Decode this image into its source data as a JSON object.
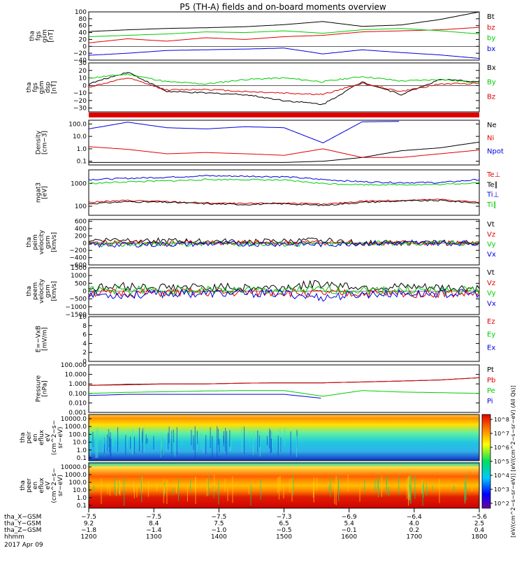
{
  "title": "P5 (TH-A) fields and on-board moments overview",
  "colors": {
    "black": "#000000",
    "red": "#e00000",
    "green": "#00cc00",
    "blue": "#0000dd"
  },
  "chart_data": [
    {
      "type": "line",
      "id": "fgs_btotal",
      "ylabel": [
        "tha",
        "fgs",
        "gsm",
        "[nT]"
      ],
      "ylim": [
        -40,
        100
      ],
      "ticks": [
        "100",
        "80",
        "60",
        "40",
        "20",
        "0",
        "−20",
        "−40"
      ],
      "tickvals": [
        100,
        80,
        60,
        40,
        20,
        0,
        -20,
        -40
      ],
      "x": [
        0,
        10,
        20,
        30,
        40,
        50,
        60,
        70,
        80,
        90,
        100
      ],
      "series": [
        {
          "name": "Bt",
          "color": "black",
          "values": [
            43,
            48,
            52,
            54,
            57,
            63,
            72,
            58,
            62,
            78,
            100
          ]
        },
        {
          "name": "bz",
          "color": "red",
          "values": [
            10,
            22,
            15,
            25,
            20,
            28,
            32,
            42,
            45,
            48,
            55
          ]
        },
        {
          "name": "by",
          "color": "green",
          "values": [
            28,
            32,
            36,
            42,
            40,
            45,
            38,
            48,
            52,
            45,
            36
          ]
        },
        {
          "name": "bx",
          "color": "blue",
          "values": [
            -26,
            -20,
            -12,
            -10,
            -8,
            -5,
            -22,
            -10,
            -18,
            -25,
            -35
          ]
        }
      ]
    },
    {
      "type": "line",
      "id": "fgs_comp",
      "ylabel": [
        "tha",
        "fgs",
        "gsm",
        "dsp",
        "[nT]"
      ],
      "ylim": [
        -35,
        30
      ],
      "ticks": [
        "30",
        "20",
        "10",
        "0",
        "−10",
        "−20",
        "−30"
      ],
      "tickvals": [
        30,
        20,
        10,
        0,
        -10,
        -20,
        -30
      ],
      "x": [
        0,
        10,
        20,
        30,
        40,
        50,
        60,
        70,
        80,
        90,
        100
      ],
      "series": [
        {
          "name": "Bx",
          "color": "black",
          "values": [
            2,
            18,
            -8,
            -10,
            -12,
            -20,
            -25,
            5,
            -12,
            8,
            5
          ]
        },
        {
          "name": "By",
          "color": "green",
          "values": [
            10,
            15,
            5,
            2,
            8,
            10,
            5,
            12,
            6,
            8,
            4
          ]
        },
        {
          "name": "Bz",
          "color": "red",
          "values": [
            -2,
            10,
            -6,
            -5,
            -8,
            -10,
            -12,
            3,
            -8,
            2,
            3
          ]
        }
      ]
    },
    {
      "type": "line",
      "id": "density",
      "ylabel": [
        "Density",
        "[cm−3]"
      ],
      "log": true,
      "ylim": [
        0.05,
        200
      ],
      "ticks": [
        "100.0",
        "10.0",
        "1.0",
        "0.1"
      ],
      "tickvals": [
        100,
        10,
        1,
        0.1
      ],
      "x": [
        0,
        10,
        20,
        30,
        40,
        50,
        60,
        70,
        80,
        90,
        100
      ],
      "series": [
        {
          "name": "Ne",
          "color": "black",
          "values": [
            0.08,
            0.08,
            0.08,
            0.08,
            0.08,
            0.08,
            0.1,
            0.2,
            0.7,
            1.2,
            3.5
          ]
        },
        {
          "name": "Ni",
          "color": "red",
          "values": [
            1.5,
            0.9,
            0.4,
            0.5,
            0.4,
            0.3,
            1.0,
            0.2,
            0.2,
            0.4,
            0.8
          ]
        },
        {
          "name": "Npot",
          "color": "blue",
          "values": [
            40,
            140,
            50,
            40,
            60,
            50,
            3,
            150,
            160,
            null,
            null
          ]
        }
      ]
    },
    {
      "type": "line",
      "id": "temperature",
      "ylabel": [
        "mgat3",
        "[eV]"
      ],
      "log": true,
      "ylim": [
        40,
        4000
      ],
      "ticks": [
        "1000",
        "100"
      ],
      "tickvals": [
        1000,
        100
      ],
      "x": [
        0,
        10,
        20,
        30,
        40,
        50,
        60,
        70,
        80,
        90,
        100
      ],
      "series": [
        {
          "name": "Te⊥",
          "color": "red",
          "values": [
            150,
            180,
            160,
            140,
            130,
            140,
            120,
            170,
            180,
            200,
            150
          ]
        },
        {
          "name": "Te∥",
          "color": "black",
          "values": [
            130,
            160,
            150,
            130,
            120,
            130,
            110,
            150,
            170,
            180,
            140
          ]
        },
        {
          "name": "Ti⊥",
          "color": "blue",
          "values": [
            1500,
            1700,
            1900,
            2200,
            2100,
            2000,
            1500,
            1200,
            1100,
            1100,
            1500
          ]
        },
        {
          "name": "Ti∥",
          "color": "green",
          "values": [
            1000,
            1200,
            1300,
            1500,
            1500,
            1400,
            1000,
            900,
            900,
            900,
            1100
          ]
        }
      ]
    },
    {
      "type": "line",
      "id": "ion_velocity",
      "ylabel": [
        "tha",
        "peim",
        "velocity",
        "gsm",
        "[km/s]"
      ],
      "ylim": [
        -600,
        650
      ],
      "ticks": [
        "600",
        "400",
        "200",
        "0",
        "−200",
        "−400",
        "−600"
      ],
      "tickvals": [
        600,
        400,
        200,
        0,
        -200,
        -400,
        -600
      ],
      "x": [
        0,
        10,
        20,
        30,
        40,
        50,
        60,
        70,
        80,
        90,
        100
      ],
      "series": [
        {
          "name": "Vt",
          "color": "black",
          "values": [
            80,
            100,
            60,
            50,
            40,
            50,
            80,
            10,
            10,
            10,
            10
          ]
        },
        {
          "name": "Vz",
          "color": "red",
          "values": [
            10,
            20,
            0,
            10,
            0,
            10,
            20,
            0,
            0,
            0,
            0
          ]
        },
        {
          "name": "Vy",
          "color": "green",
          "values": [
            -40,
            -30,
            -20,
            -20,
            -10,
            -20,
            -30,
            0,
            0,
            0,
            0
          ]
        },
        {
          "name": "Vx",
          "color": "blue",
          "values": [
            -60,
            -40,
            -30,
            -20,
            -20,
            -20,
            -40,
            0,
            0,
            0,
            0
          ]
        }
      ]
    },
    {
      "type": "line",
      "id": "electron_velocity",
      "ylabel": [
        "tha",
        "peem",
        "velocity",
        "gsm",
        "[km/s]"
      ],
      "ylim": [
        -1500,
        1500
      ],
      "ticks": [
        "1500",
        "1000",
        "500",
        "0",
        "−500",
        "−1000",
        "−1500"
      ],
      "tickvals": [
        1500,
        1000,
        500,
        0,
        -500,
        -1000,
        -1500
      ],
      "x": [
        0,
        10,
        20,
        30,
        40,
        50,
        60,
        70,
        80,
        90,
        100
      ],
      "series": [
        {
          "name": "Vt",
          "color": "black",
          "values": [
            200,
            300,
            250,
            250,
            220,
            250,
            500,
            250,
            250,
            200,
            150
          ]
        },
        {
          "name": "Vz",
          "color": "red",
          "values": [
            -100,
            -150,
            -100,
            -100,
            -100,
            -100,
            -150,
            -150,
            -150,
            -150,
            -150
          ]
        },
        {
          "name": "Vy",
          "color": "green",
          "values": [
            50,
            60,
            50,
            60,
            50,
            50,
            50,
            60,
            60,
            50,
            40
          ]
        },
        {
          "name": "Vx",
          "color": "blue",
          "values": [
            -200,
            -250,
            -150,
            -150,
            -150,
            -150,
            -400,
            -200,
            -150,
            -150,
            -150
          ]
        }
      ]
    },
    {
      "type": "line",
      "id": "efield",
      "ylabel": [
        "E=−VxB",
        "[mV/m]"
      ],
      "ylim": [
        0,
        10
      ],
      "ticks": [
        "10",
        "8",
        "6",
        "4",
        "2",
        "0"
      ],
      "tickvals": [
        10,
        8,
        6,
        4,
        2,
        0
      ],
      "x": [],
      "series": [
        {
          "name": "Ez",
          "color": "red",
          "values": []
        },
        {
          "name": "Ey",
          "color": "green",
          "values": []
        },
        {
          "name": "Ex",
          "color": "blue",
          "values": []
        }
      ]
    },
    {
      "type": "line",
      "id": "pressure",
      "ylabel": [
        "Pressure",
        "[nPa]"
      ],
      "log": true,
      "ylim": [
        0.001,
        100
      ],
      "ticks": [
        "100.000",
        "10.000",
        "1.000",
        "0.100",
        "0.010",
        "0.001"
      ],
      "tickvals": [
        100,
        10,
        1,
        0.1,
        0.01,
        0.001
      ],
      "x": [
        0,
        10,
        20,
        30,
        40,
        50,
        60,
        70,
        80,
        90,
        100
      ],
      "series": [
        {
          "name": "Pt",
          "color": "black",
          "values": [
            0.7,
            0.9,
            1.0,
            1.0,
            1.2,
            1.3,
            1.3,
            1.6,
            2.0,
            2.6,
            4.5
          ]
        },
        {
          "name": "Pb",
          "color": "red",
          "values": [
            0.7,
            0.8,
            1.0,
            1.0,
            1.2,
            1.3,
            1.3,
            1.6,
            2.0,
            2.6,
            4.5
          ]
        },
        {
          "name": "Pe",
          "color": "green",
          "values": [
            0.1,
            0.13,
            0.15,
            0.18,
            0.2,
            0.2,
            0.05,
            0.2,
            0.14,
            0.12,
            0.1
          ]
        },
        {
          "name": "Pi",
          "color": "blue",
          "values": [
            0.06,
            0.08,
            0.08,
            0.08,
            0.08,
            0.08,
            0.03,
            null,
            null,
            null,
            null
          ]
        }
      ]
    },
    {
      "type": "heatmap",
      "id": "ion_spectrogram",
      "ylabel": [
        "tha",
        "peir",
        "en",
        "eflux",
        "eV",
        "(cm^2−s−",
        "sr−eV)"
      ],
      "ticks": [
        "10000.0",
        "1000.0",
        "100.0",
        "10.0",
        "1.0",
        "0.1"
      ]
    },
    {
      "type": "heatmap",
      "id": "electron_spectrogram",
      "ylabel": [
        "tha",
        "peer",
        "en",
        "eflux",
        "eV",
        "(cm^2−s−",
        "sr−eV)"
      ],
      "ticks": [
        "10000.0",
        "1000.0",
        "100.0",
        "10.0",
        "1.0",
        "0.1"
      ]
    }
  ],
  "colorbar": {
    "ticks": [
      "10^8",
      "10^7",
      "10^6",
      "10^5",
      "10^4",
      "10^3",
      "10^2"
    ],
    "label": "[eV/(cm^2−s−sr−eV)] [eV/(cm^2−s−sr−eV) (All Qs)]"
  },
  "xaxis": {
    "rows": [
      {
        "label": "tha_X−GSM",
        "values": [
          "−7.5",
          "−7.5",
          "−7.5",
          "−7.3",
          "−6.9",
          "−6.4",
          "−5.6"
        ]
      },
      {
        "label": "tha_Y−GSM",
        "values": [
          "9.2",
          "8.4",
          "7.5",
          "6.5",
          "5.4",
          "4.0",
          "2.5"
        ]
      },
      {
        "label": "tha_Z−GSM",
        "values": [
          "−1.8",
          "−1.4",
          "−1.0",
          "−0.5",
          "−0.1",
          "0.2",
          "0.4"
        ]
      },
      {
        "label": "hhmm",
        "values": [
          "1200",
          "1300",
          "1400",
          "1500",
          "1600",
          "1700",
          "1800"
        ]
      }
    ],
    "date": "2017 Apr 09"
  }
}
